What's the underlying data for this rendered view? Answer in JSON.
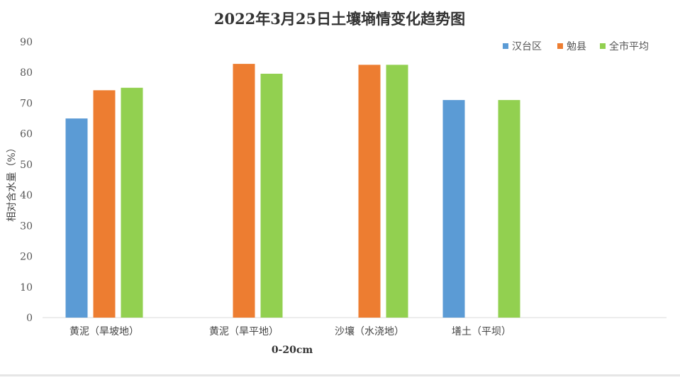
{
  "chart_data": {
    "type": "bar",
    "title": "2022年3月25日土壤墒情变化趋势图",
    "xlabel": "0-20cm",
    "ylabel": "相对含水量（%）",
    "ylim": [
      0,
      90
    ],
    "yticks": [
      0,
      10,
      20,
      30,
      40,
      50,
      60,
      70,
      80,
      90
    ],
    "categories": [
      "黄泥（旱坡地）",
      "黄泥（旱平地）",
      "沙壤（水浇地）",
      "墡土（平坝）"
    ],
    "series": [
      {
        "name": "汉台区",
        "color": "#5b9bd5",
        "values": [
          65,
          null,
          null,
          71
        ]
      },
      {
        "name": "勉县",
        "color": "#ed7d31",
        "values": [
          74.2,
          82.8,
          82.5,
          null
        ]
      },
      {
        "name": "全市平均",
        "color": "#92d050",
        "values": [
          75,
          79.6,
          82.5,
          71
        ]
      }
    ],
    "grid": false,
    "legend_position": "top-right"
  }
}
